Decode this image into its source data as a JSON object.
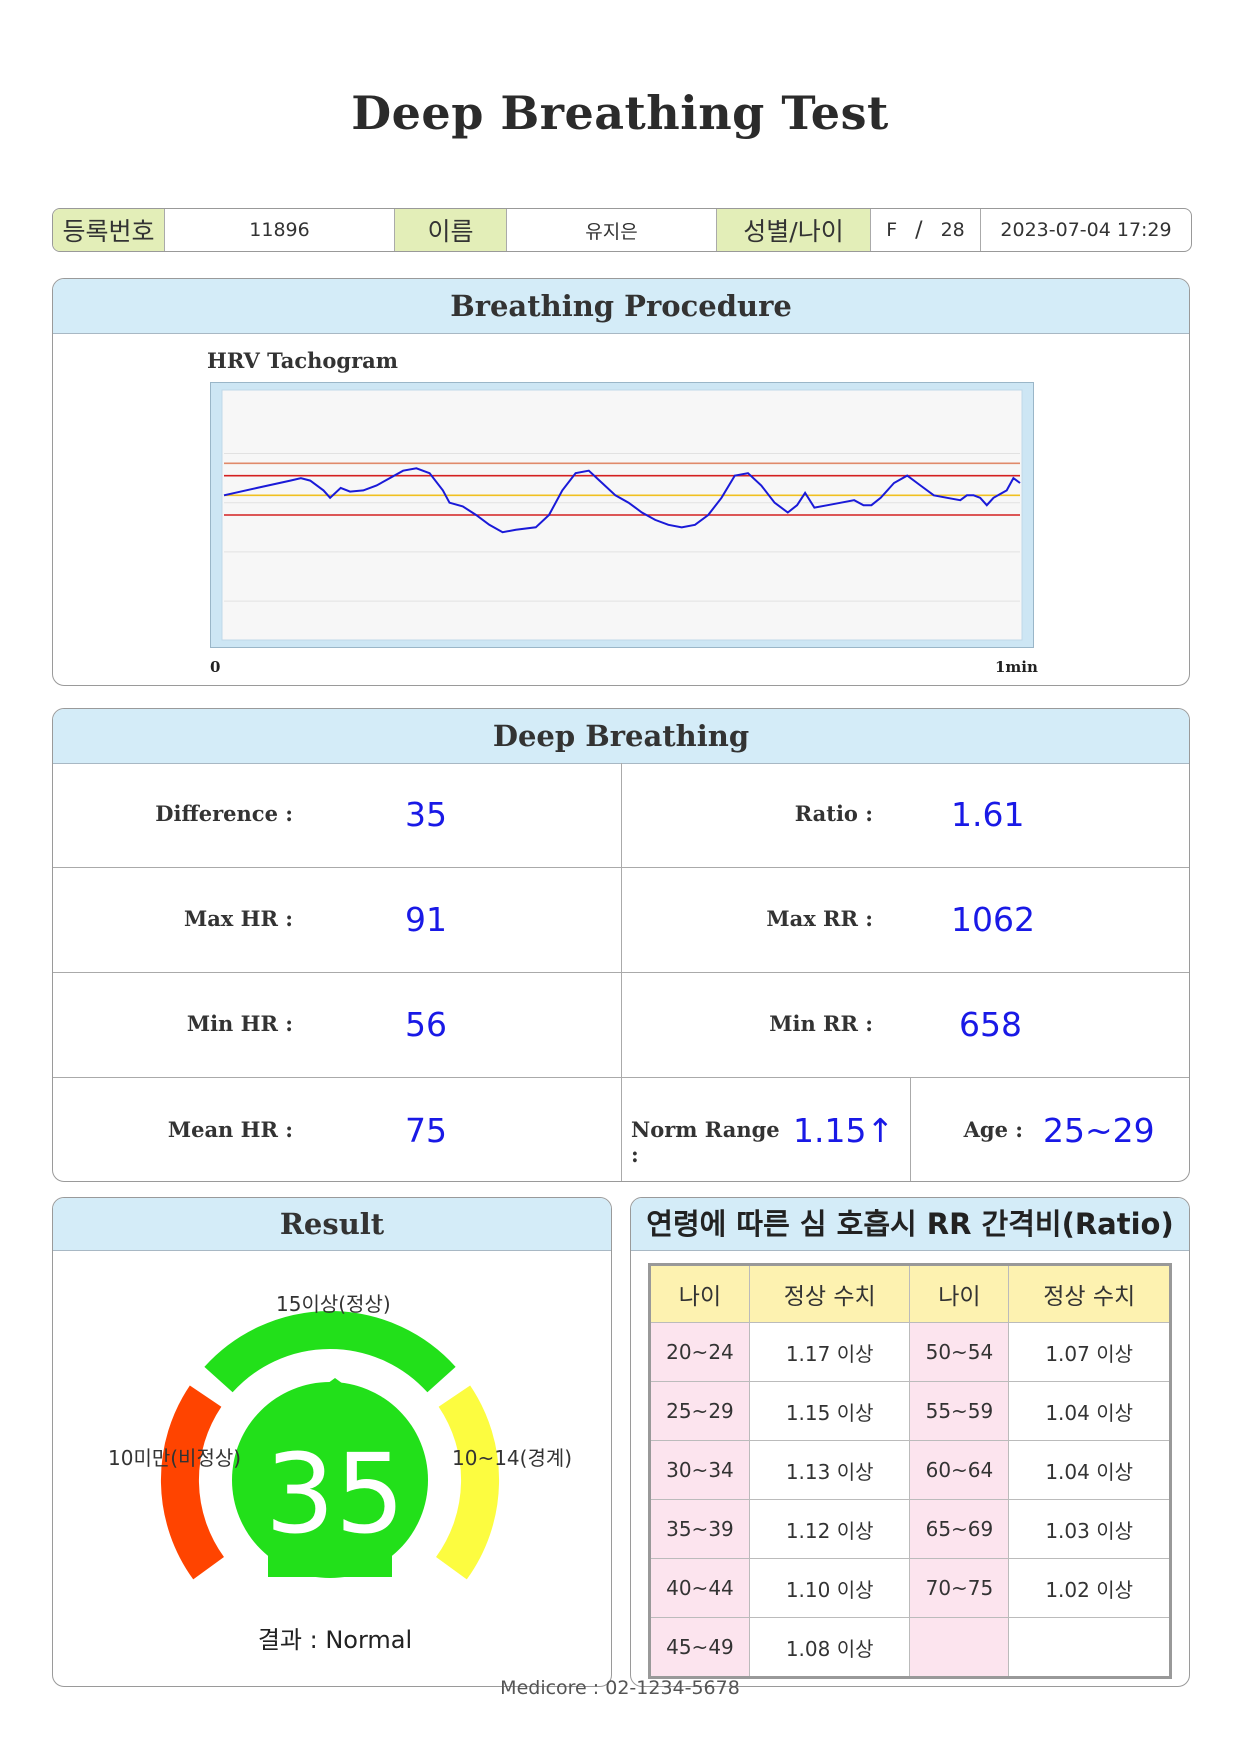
{
  "title": "Deep Breathing Test",
  "info": {
    "reg_label": "등록번호",
    "reg_value": "11896",
    "name_label": "이름",
    "name_value": "유지은",
    "sexage_label": "성별/나이",
    "sex_value": "F",
    "slash": "/",
    "age_value": "28",
    "datetime": "2023-07-04 17:29"
  },
  "procedure": {
    "header": "Breathing Procedure",
    "chart_title": "HRV Tachogram",
    "tick_start": "0",
    "tick_end": "1min"
  },
  "chart_data": {
    "type": "line",
    "title": "HRV Tachogram",
    "xlabel": "",
    "ylabel": "",
    "x_ticks": [
      "0",
      "1min"
    ],
    "xlim": [
      0,
      60
    ],
    "ylim": [
      0,
      100
    ],
    "reference_lines": [
      {
        "name": "",
        "value": 71,
        "color": "#e08a6a"
      },
      {
        "name": "",
        "value": 66,
        "color": "#d42020"
      },
      {
        "name": "",
        "value": 58,
        "color": "#f0c020"
      },
      {
        "name": "",
        "value": 50,
        "color": "#d42020"
      }
    ],
    "series": [
      {
        "values": [
          [
            0,
            58
          ],
          [
            2.5,
            61
          ],
          [
            5,
            64
          ],
          [
            5.8,
            65
          ],
          [
            6.5,
            64
          ],
          [
            7.5,
            60
          ],
          [
            8,
            57
          ],
          [
            8.8,
            61
          ],
          [
            9.5,
            59.5
          ],
          [
            10.5,
            60
          ],
          [
            11.5,
            62
          ],
          [
            12.5,
            65
          ],
          [
            13.5,
            68
          ],
          [
            14.5,
            69
          ],
          [
            15.5,
            67
          ],
          [
            16.5,
            60
          ],
          [
            17,
            55
          ],
          [
            18,
            53.5
          ],
          [
            19,
            50
          ],
          [
            20,
            46
          ],
          [
            21,
            43
          ],
          [
            22,
            44
          ],
          [
            23.5,
            45
          ],
          [
            24.5,
            50
          ],
          [
            25.5,
            60
          ],
          [
            26.5,
            67
          ],
          [
            27.5,
            68
          ],
          [
            28.5,
            63
          ],
          [
            29.5,
            58
          ],
          [
            30.5,
            55
          ],
          [
            31.5,
            51
          ],
          [
            32.5,
            48
          ],
          [
            33.5,
            46
          ],
          [
            34.5,
            45
          ],
          [
            35.5,
            46
          ],
          [
            36.5,
            50
          ],
          [
            37.5,
            57
          ],
          [
            38.5,
            66
          ],
          [
            39.5,
            67
          ],
          [
            40.5,
            62
          ],
          [
            41.5,
            55
          ],
          [
            42.5,
            51
          ],
          [
            43.2,
            54
          ],
          [
            43.8,
            59
          ],
          [
            44.5,
            53
          ],
          [
            45.5,
            54
          ],
          [
            46.5,
            55
          ],
          [
            47.5,
            56
          ],
          [
            48.2,
            54
          ],
          [
            48.8,
            54
          ],
          [
            49.5,
            57
          ],
          [
            50.5,
            63
          ],
          [
            51.5,
            66
          ],
          [
            52.5,
            62
          ],
          [
            53.5,
            58
          ],
          [
            54.5,
            57
          ],
          [
            55.5,
            56
          ],
          [
            56,
            58
          ],
          [
            56.5,
            58
          ],
          [
            57,
            57
          ],
          [
            57.5,
            54
          ],
          [
            58,
            57
          ],
          [
            59,
            60
          ],
          [
            59.5,
            65
          ],
          [
            60,
            63
          ]
        ]
      }
    ]
  },
  "deep": {
    "header": "Deep Breathing",
    "difference_label": "Difference :",
    "difference_value": "35",
    "ratio_label": "Ratio :",
    "ratio_value": "1.61",
    "maxhr_label": "Max HR :",
    "maxhr_value": "91",
    "maxrr_label": "Max RR :",
    "maxrr_value": "1062",
    "minhr_label": "Min HR :",
    "minhr_value": "56",
    "minrr_label": "Min RR :",
    "minrr_value": "658",
    "meanhr_label": "Mean HR :",
    "meanhr_value": "75",
    "norm_label": "Norm Range :",
    "norm_value": "1.15↑",
    "age_label": "Age :",
    "age_value": "25~29"
  },
  "result": {
    "header": "Result",
    "label_normal": "15이상(정상)",
    "label_abnormal": "10미만(비정상)",
    "label_borderline": "10~14(경계)",
    "value": "35",
    "result_text": "결과 : Normal",
    "colors": {
      "normal": "#22e01a",
      "borderline": "#fcfc40",
      "abnormal": "#ff4400"
    }
  },
  "ratio_table": {
    "header": "연령에 따른 심 호흡시 RR 간격비(Ratio)",
    "col_age": "나이",
    "col_norm": "정상 수치",
    "rows": [
      {
        "age1": "20~24",
        "val1": "1.17 이상",
        "age2": "50~54",
        "val2": "1.07 이상"
      },
      {
        "age1": "25~29",
        "val1": "1.15 이상",
        "age2": "55~59",
        "val2": "1.04 이상"
      },
      {
        "age1": "30~34",
        "val1": "1.13 이상",
        "age2": "60~64",
        "val2": "1.04 이상"
      },
      {
        "age1": "35~39",
        "val1": "1.12 이상",
        "age2": "65~69",
        "val2": "1.03 이상"
      },
      {
        "age1": "40~44",
        "val1": "1.10 이상",
        "age2": "70~75",
        "val2": "1.02 이상"
      },
      {
        "age1": "45~49",
        "val1": "1.08 이상",
        "age2": "",
        "val2": ""
      }
    ]
  },
  "footer": "Medicore : 02-1234-5678"
}
